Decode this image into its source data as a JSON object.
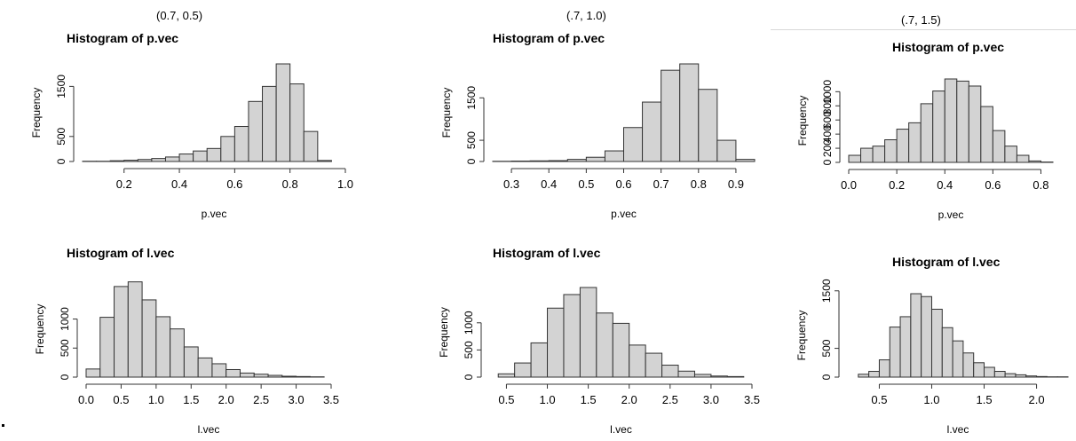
{
  "column_headers": [
    "(0.7, 0.5)",
    "(.7, 1.0)",
    "(.7, 1.5)"
  ],
  "bar_fill": "#d3d3d3",
  "bar_stroke": "#333333",
  "chart_data": [
    {
      "type": "bar",
      "id": "p1",
      "title": "Histogram of p.vec",
      "xlabel": "p.vec",
      "ylabel": "Frequency",
      "xlim": [
        0.05,
        1.0
      ],
      "ylim": [
        0,
        1950
      ],
      "xticks": [
        0.2,
        0.4,
        0.6,
        0.8,
        1.0
      ],
      "xtick_labels": [
        "0.2",
        "0.4",
        "0.6",
        "0.8",
        "1.0"
      ],
      "yticks": [
        0,
        500,
        1500
      ],
      "ytick_labels": [
        "0",
        "500",
        "1500"
      ],
      "bin_start": 0.05,
      "bin_width": 0.05,
      "values": [
        5,
        5,
        15,
        25,
        40,
        60,
        90,
        150,
        210,
        260,
        500,
        700,
        1200,
        1500,
        1950,
        1550,
        600,
        20
      ]
    },
    {
      "type": "bar",
      "id": "p2",
      "title": "Histogram of p.vec",
      "xlabel": "p.vec",
      "ylabel": "Frequency",
      "xlim": [
        0.25,
        0.95
      ],
      "ylim": [
        0,
        2300
      ],
      "xticks": [
        0.3,
        0.4,
        0.5,
        0.6,
        0.7,
        0.8,
        0.9
      ],
      "xtick_labels": [
        "0.3",
        "0.4",
        "0.5",
        "0.6",
        "0.7",
        "0.8",
        "0.9"
      ],
      "yticks": [
        0,
        500,
        1500
      ],
      "ytick_labels": [
        "0",
        "500",
        "1500"
      ],
      "bin_start": 0.25,
      "bin_width": 0.05,
      "values": [
        5,
        10,
        15,
        20,
        50,
        100,
        250,
        800,
        1400,
        2150,
        2300,
        1700,
        500,
        50
      ]
    },
    {
      "type": "bar",
      "id": "p3",
      "title": "Histogram of p.vec",
      "xlabel": "p.vec",
      "ylabel": "Frequency",
      "xlim": [
        0.0,
        0.85
      ],
      "ylim": [
        0,
        1180
      ],
      "xticks": [
        0.0,
        0.2,
        0.4,
        0.6,
        0.8
      ],
      "xtick_labels": [
        "0.0",
        "0.2",
        "0.4",
        "0.6",
        "0.8"
      ],
      "yticks": [
        0,
        200,
        400,
        600,
        800,
        1000
      ],
      "ytick_labels": [
        "0",
        "200",
        "400",
        "600",
        "800",
        "1000"
      ],
      "bin_start": 0.0,
      "bin_width": 0.05,
      "values": [
        100,
        200,
        230,
        320,
        470,
        560,
        830,
        1010,
        1180,
        1150,
        1080,
        790,
        450,
        230,
        100,
        20,
        5
      ]
    },
    {
      "type": "bar",
      "id": "l1",
      "title": "Histogram of l.vec",
      "xlabel": "l.vec",
      "ylabel": "Frequency",
      "xlim": [
        0.0,
        3.5
      ],
      "ylim": [
        0,
        1650
      ],
      "xticks": [
        0.0,
        0.5,
        1.0,
        1.5,
        2.0,
        2.5,
        3.0,
        3.5
      ],
      "xtick_labels": [
        "0.0",
        "0.5",
        "1.0",
        "1.5",
        "2.0",
        "2.5",
        "3.0",
        "3.5"
      ],
      "yticks": [
        0,
        500,
        1000
      ],
      "ytick_labels": [
        "0",
        "500",
        "1000"
      ],
      "bin_start": 0.0,
      "bin_width": 0.2,
      "values": [
        140,
        1030,
        1560,
        1640,
        1330,
        1040,
        830,
        520,
        330,
        230,
        130,
        70,
        50,
        30,
        15,
        10,
        5
      ]
    },
    {
      "type": "bar",
      "id": "l2",
      "title": "Histogram of l.vec",
      "xlabel": "l.vec",
      "ylabel": "Frequency",
      "xlim": [
        0.3,
        3.5
      ],
      "ylim": [
        0,
        1650
      ],
      "xticks": [
        0.5,
        1.0,
        1.5,
        2.0,
        2.5,
        3.0,
        3.5
      ],
      "xtick_labels": [
        "0.5",
        "1.0",
        "1.5",
        "2.0",
        "2.5",
        "3.0",
        "3.5"
      ],
      "yticks": [
        0,
        500,
        1000
      ],
      "ytick_labels": [
        "0",
        "500",
        "1000"
      ],
      "bin_start": 0.4,
      "bin_width": 0.2,
      "values": [
        60,
        260,
        630,
        1270,
        1520,
        1650,
        1180,
        990,
        590,
        440,
        220,
        110,
        50,
        20,
        10
      ]
    },
    {
      "type": "bar",
      "id": "l3",
      "title": "Histogram of l.vec",
      "xlabel": "l.vec",
      "ylabel": "Frequency",
      "xlim": [
        0.2,
        2.3
      ],
      "ylim": [
        0,
        1450
      ],
      "xticks": [
        0.5,
        1.0,
        1.5,
        2.0
      ],
      "xtick_labels": [
        "0.5",
        "1.0",
        "1.5",
        "2.0"
      ],
      "yticks": [
        0,
        500,
        1500
      ],
      "ytick_labels": [
        "0",
        "500",
        "1500"
      ],
      "bin_start": 0.3,
      "bin_width": 0.1,
      "values": [
        50,
        100,
        300,
        870,
        1050,
        1450,
        1400,
        1180,
        860,
        630,
        420,
        250,
        170,
        100,
        60,
        40,
        20,
        10,
        5,
        5
      ]
    }
  ]
}
